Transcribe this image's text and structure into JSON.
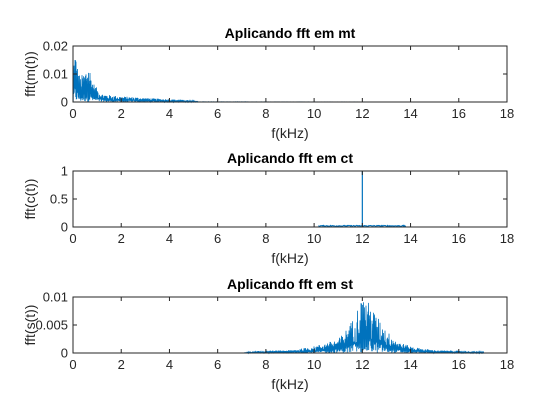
{
  "colors": {
    "series": "#0072BD",
    "axes": "#262626",
    "background": "#ffffff"
  },
  "chart_data": [
    {
      "type": "line",
      "title": "Aplicando fft em mt",
      "xlabel": "f(kHz)",
      "ylabel": "fft(m(t))",
      "xlim": [
        0,
        18
      ],
      "ylim": [
        0,
        0.02
      ],
      "xticks": [
        0,
        2,
        4,
        6,
        8,
        10,
        12,
        14,
        16,
        18
      ],
      "xtick_labels": [
        "0",
        "2",
        "4",
        "6",
        "8",
        "10",
        "12",
        "14",
        "16",
        "18"
      ],
      "yticks": [
        0,
        0.01,
        0.02
      ],
      "ytick_labels": [
        "0",
        "0.01",
        "0.02"
      ],
      "envelope": {
        "x": [
          0,
          0.05,
          0.1,
          0.2,
          0.3,
          0.4,
          0.5,
          0.6,
          0.7,
          0.8,
          0.9,
          1.0,
          1.2,
          1.5,
          1.8,
          2.0,
          2.5,
          3.0,
          3.5,
          4.0,
          4.5,
          5.0,
          5.2,
          18
        ],
        "y": [
          0.003,
          0.019,
          0.018,
          0.012,
          0.009,
          0.01,
          0.011,
          0.014,
          0.012,
          0.008,
          0.006,
          0.005,
          0.003,
          0.0025,
          0.0022,
          0.002,
          0.0018,
          0.0015,
          0.0012,
          0.001,
          0.0008,
          0.0005,
          0.0001,
          0
        ]
      }
    },
    {
      "type": "line",
      "title": "Aplicando fft em ct",
      "xlabel": "f(kHz)",
      "ylabel": "fft(c(t))",
      "xlim": [
        0,
        18
      ],
      "ylim": [
        0,
        1
      ],
      "xticks": [
        0,
        2,
        4,
        6,
        8,
        10,
        12,
        14,
        16,
        18
      ],
      "xtick_labels": [
        "0",
        "2",
        "4",
        "6",
        "8",
        "10",
        "12",
        "14",
        "16",
        "18"
      ],
      "yticks": [
        0,
        0.5,
        1
      ],
      "ytick_labels": [
        "0",
        "0.5",
        "1"
      ],
      "envelope": {
        "x": [
          0,
          10.2,
          10.3,
          11.0,
          11.9,
          12.0,
          12.1,
          13.0,
          13.7,
          13.8,
          18
        ],
        "y": [
          0,
          0,
          0.02,
          0.02,
          0.02,
          1.0,
          0.02,
          0.02,
          0.02,
          0,
          0
        ]
      }
    },
    {
      "type": "line",
      "title": "Aplicando fft em st",
      "xlabel": "f(kHz)",
      "ylabel": "fft(s(t))",
      "xlim": [
        0,
        18
      ],
      "ylim": [
        0,
        0.01
      ],
      "xticks": [
        0,
        2,
        4,
        6,
        8,
        10,
        12,
        14,
        16,
        18
      ],
      "xtick_labels": [
        "0",
        "2",
        "4",
        "6",
        "8",
        "10",
        "12",
        "14",
        "16",
        "18"
      ],
      "yticks": [
        0,
        0.005,
        0.01
      ],
      "ytick_labels": [
        "0",
        "0.005",
        "0.01"
      ],
      "envelope": {
        "x": [
          0,
          7.0,
          7.5,
          8.0,
          9.0,
          9.5,
          10.0,
          10.5,
          11.0,
          11.3,
          11.6,
          11.8,
          12.0,
          12.2,
          12.4,
          12.7,
          13.0,
          13.5,
          14.0,
          14.5,
          15.0,
          16.0,
          17.0,
          17.1,
          18
        ],
        "y": [
          0,
          0,
          0.0003,
          0.0004,
          0.0005,
          0.0008,
          0.0012,
          0.0018,
          0.0025,
          0.004,
          0.006,
          0.008,
          0.01,
          0.0095,
          0.008,
          0.006,
          0.004,
          0.002,
          0.0012,
          0.0008,
          0.0005,
          0.0004,
          0.0002,
          0,
          0
        ]
      }
    }
  ]
}
